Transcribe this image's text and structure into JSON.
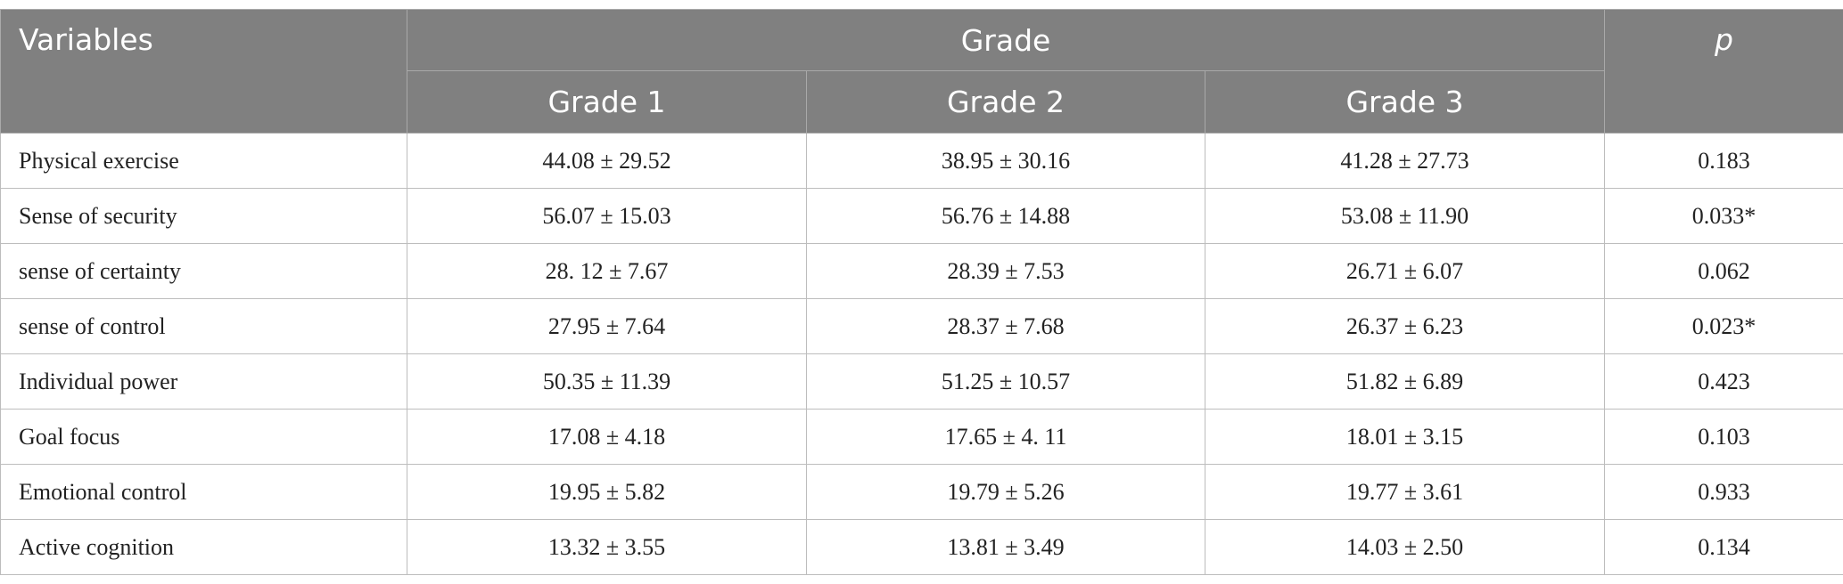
{
  "table": {
    "header": {
      "variables": "Variables",
      "grade": "Grade",
      "p": "p",
      "grades": [
        "Grade 1",
        "Grade 2",
        "Grade 3"
      ]
    },
    "rows": [
      [
        "Physical exercise",
        "44.08 ± 29.52",
        "38.95 ± 30.16",
        "41.28 ± 27.73",
        "0.183"
      ],
      [
        "Sense of security",
        "56.07 ± 15.03",
        "56.76 ± 14.88",
        "53.08 ± 11.90",
        "0.033*"
      ],
      [
        "sense of certainty",
        "28. 12 ± 7.67",
        "28.39 ± 7.53",
        "26.71 ± 6.07",
        "0.062"
      ],
      [
        "sense of control",
        "27.95 ± 7.64",
        "28.37 ± 7.68",
        "26.37 ± 6.23",
        "0.023*"
      ],
      [
        "Individual power",
        "50.35 ± 11.39",
        "51.25 ± 10.57",
        "51.82 ± 6.89",
        "0.423"
      ],
      [
        "Goal focus",
        "17.08 ± 4.18",
        "17.65 ± 4. 11",
        "18.01 ± 3.15",
        "0.103"
      ],
      [
        "Emotional control",
        "19.95 ± 5.82",
        "19.79 ± 5.26",
        "19.77 ± 3.61",
        "0.933"
      ],
      [
        "Active cognition",
        "13.32 ± 3.55",
        "13.81 ± 3.49",
        "14.03 ± 2.50",
        "0.134"
      ]
    ]
  }
}
